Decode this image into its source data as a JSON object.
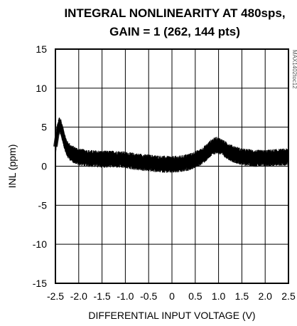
{
  "chart_data": {
    "type": "line",
    "title_line1": "INTEGRAL NONLINEARITY AT 480sps,",
    "title_line2": "GAIN = 1 (262, 144 pts)",
    "xlabel": "DIFFERENTIAL INPUT VOLTAGE (V)",
    "ylabel": "INL (ppm)",
    "side_note": "MAX1402toc12",
    "xlim": [
      -2.5,
      2.5
    ],
    "ylim": [
      -15,
      15
    ],
    "x_ticks": [
      "-2.5",
      "-2.0",
      "-1.5",
      "-1.0",
      "-0.5",
      "0",
      "0.5",
      "1.0",
      "1.5",
      "2.0",
      "2.5"
    ],
    "y_ticks": [
      "15",
      "10",
      "5",
      "0",
      "-5",
      "-10",
      "-15"
    ],
    "grid": true,
    "series": [
      {
        "x": [
          -2.5,
          -2.45,
          -2.42,
          -2.38,
          -2.32,
          -2.25,
          -2.15,
          -2.0,
          -1.8,
          -1.5,
          -1.2,
          -1.0,
          -0.8,
          -0.5,
          -0.3,
          0.0,
          0.2,
          0.4,
          0.6,
          0.75,
          0.85,
          0.95,
          1.05,
          1.15,
          1.3,
          1.5,
          1.8,
          2.0,
          2.2,
          2.5
        ],
        "y": [
          2.5,
          4.5,
          5.3,
          5.0,
          3.5,
          2.2,
          1.6,
          1.2,
          1.0,
          0.9,
          0.9,
          0.8,
          0.6,
          0.4,
          0.3,
          0.2,
          0.3,
          0.6,
          1.1,
          1.8,
          2.4,
          2.7,
          2.5,
          2.1,
          1.6,
          1.2,
          1.0,
          1.0,
          1.1,
          1.2
        ]
      }
    ],
    "noise_band_ppm": 1.0
  }
}
